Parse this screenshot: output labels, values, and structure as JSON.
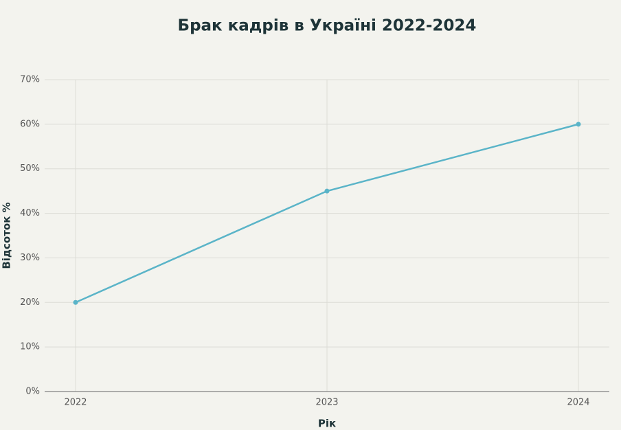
{
  "chart_data": {
    "type": "line",
    "title": "Брак кадрів в Україні 2022-2024",
    "x_label": "Рік",
    "y_label": "Відсоток %",
    "categories": [
      "2022",
      "2023",
      "2024"
    ],
    "series": [
      {
        "name": "Брак кадрів",
        "color": "#5ab4c8",
        "values": [
          20,
          45,
          60
        ]
      }
    ],
    "ylim": [
      0,
      70
    ],
    "yticks": [
      {
        "value": 0,
        "label": "0%"
      },
      {
        "value": 10,
        "label": "10%"
      },
      {
        "value": 20,
        "label": "20%"
      },
      {
        "value": 30,
        "label": "30%"
      },
      {
        "value": 40,
        "label": "40%"
      },
      {
        "value": 50,
        "label": "50%"
      },
      {
        "value": 60,
        "label": "60%"
      },
      {
        "value": 70,
        "label": "70%"
      }
    ],
    "grid": true
  }
}
